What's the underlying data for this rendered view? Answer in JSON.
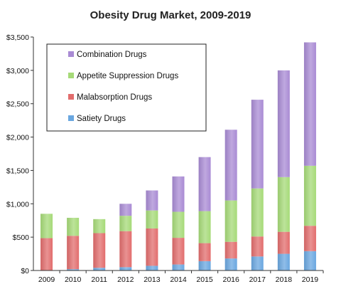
{
  "chart_data": {
    "type": "bar",
    "stacked": true,
    "title": "Obesity Drug Market, 2009-2019",
    "xlabel": "",
    "ylabel": "",
    "ylim": [
      0,
      3500
    ],
    "yticks": [
      "$0",
      "$500",
      "$1,000",
      "$1,500",
      "$2,000",
      "$2,500",
      "$3,000",
      "$3,500"
    ],
    "grid": false,
    "legend_position": "top-left",
    "categories": [
      "2009",
      "2010",
      "2011",
      "2012",
      "2013",
      "2014",
      "2015",
      "2016",
      "2017",
      "2018",
      "2019"
    ],
    "series": [
      {
        "name": "Satiety Drugs",
        "color": "#6aa7e0",
        "values": [
          5,
          20,
          40,
          50,
          70,
          90,
          140,
          180,
          210,
          250,
          290
        ]
      },
      {
        "name": "Malabsorption Drugs",
        "color": "#e26d6d",
        "values": [
          480,
          500,
          520,
          540,
          560,
          400,
          270,
          250,
          300,
          330,
          380
        ]
      },
      {
        "name": "Appetite Suppression Drugs",
        "color": "#a6da78",
        "values": [
          365,
          270,
          210,
          230,
          270,
          390,
          480,
          620,
          720,
          820,
          900
        ]
      },
      {
        "name": "Combination Drugs",
        "color": "#a98bd4",
        "values": [
          0,
          0,
          0,
          180,
          300,
          530,
          810,
          1060,
          1330,
          1600,
          1850
        ]
      }
    ]
  }
}
